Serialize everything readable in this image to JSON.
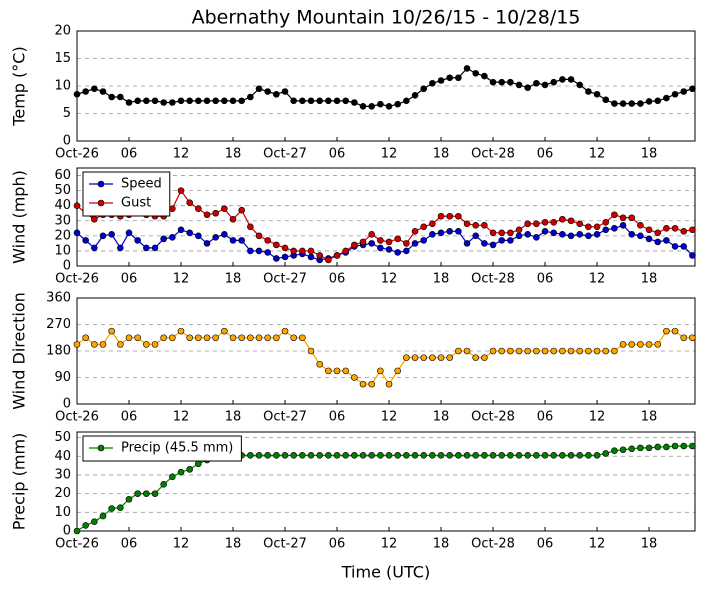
{
  "chart_data": [
    {
      "type": "line",
      "title": "Abernathy Mountain 10/26/15 - 10/28/15",
      "y_label": "Temp (°C)",
      "x": [
        0,
        1,
        2,
        3,
        4,
        5,
        6,
        7,
        8,
        9,
        10,
        11,
        12,
        13,
        14,
        15,
        16,
        17,
        18,
        19,
        20,
        21,
        22,
        23,
        24,
        25,
        26,
        27,
        28,
        29,
        30,
        31,
        32,
        33,
        34,
        35,
        36,
        37,
        38,
        39,
        40,
        41,
        42,
        43,
        44,
        45,
        46,
        47,
        48,
        49,
        50,
        51,
        52,
        53,
        54,
        55,
        56,
        57,
        58,
        59,
        60,
        61,
        62,
        63,
        64,
        65,
        66,
        67,
        68,
        69,
        70,
        71
      ],
      "xlim": [
        0,
        71.3
      ],
      "xticks": [
        {
          "value": 0,
          "label": "Oct-26"
        },
        {
          "value": 6,
          "label": "06"
        },
        {
          "value": 12,
          "label": "12"
        },
        {
          "value": 18,
          "label": "18"
        },
        {
          "value": 24,
          "label": "Oct-27"
        },
        {
          "value": 30,
          "label": "06"
        },
        {
          "value": 36,
          "label": "12"
        },
        {
          "value": 42,
          "label": "18"
        },
        {
          "value": 48,
          "label": "Oct-28"
        },
        {
          "value": 54,
          "label": "06"
        },
        {
          "value": 60,
          "label": "12"
        },
        {
          "value": 66,
          "label": "18"
        }
      ],
      "ylim": [
        0,
        20
      ],
      "yticks": [
        0,
        5,
        10,
        15,
        20
      ],
      "grid": true,
      "series": [
        {
          "color": "#000000",
          "values": [
            8.5,
            9,
            9.5,
            9,
            8,
            8,
            7,
            7.3,
            7.3,
            7.3,
            7,
            7,
            7.3,
            7.3,
            7.3,
            7.3,
            7.3,
            7.3,
            7.3,
            7.3,
            8,
            9.5,
            9,
            8.5,
            9,
            7.3,
            7.3,
            7.3,
            7.3,
            7.3,
            7.3,
            7.3,
            7,
            6.3,
            6.3,
            6.7,
            6.3,
            6.7,
            7.3,
            8.3,
            9.5,
            10.5,
            11,
            11.5,
            11.5,
            13.2,
            12.3,
            11.8,
            10.7,
            10.7,
            10.7,
            10.2,
            9.7,
            10.5,
            10.2,
            10.7,
            11.2,
            11.2,
            10.2,
            9,
            8.5,
            7.5,
            6.8,
            6.8,
            6.8,
            6.8,
            7.2,
            7.3,
            7.8,
            8.5,
            9,
            9.5
          ]
        }
      ]
    },
    {
      "type": "line",
      "y_label": "Wind (mph)",
      "x": [
        0,
        1,
        2,
        3,
        4,
        5,
        6,
        7,
        8,
        9,
        10,
        11,
        12,
        13,
        14,
        15,
        16,
        17,
        18,
        19,
        20,
        21,
        22,
        23,
        24,
        25,
        26,
        27,
        28,
        29,
        30,
        31,
        32,
        33,
        34,
        35,
        36,
        37,
        38,
        39,
        40,
        41,
        42,
        43,
        44,
        45,
        46,
        47,
        48,
        49,
        50,
        51,
        52,
        53,
        54,
        55,
        56,
        57,
        58,
        59,
        60,
        61,
        62,
        63,
        64,
        65,
        66,
        67,
        68,
        69,
        70,
        71
      ],
      "xlim": [
        0,
        71.3
      ],
      "xticks": [
        {
          "value": 0,
          "label": "Oct-26"
        },
        {
          "value": 6,
          "label": "06"
        },
        {
          "value": 12,
          "label": "12"
        },
        {
          "value": 18,
          "label": "18"
        },
        {
          "value": 24,
          "label": "Oct-27"
        },
        {
          "value": 30,
          "label": "06"
        },
        {
          "value": 36,
          "label": "12"
        },
        {
          "value": 42,
          "label": "18"
        },
        {
          "value": 48,
          "label": "Oct-28"
        },
        {
          "value": 54,
          "label": "06"
        },
        {
          "value": 60,
          "label": "12"
        },
        {
          "value": 66,
          "label": "18"
        }
      ],
      "ylim": [
        0,
        65
      ],
      "yticks": [
        0,
        10,
        20,
        30,
        40,
        50,
        60
      ],
      "grid": true,
      "legend": "upper left",
      "series": [
        {
          "name": "Speed",
          "color": "#0000cc",
          "values": [
            22,
            17,
            12,
            20,
            21,
            12,
            22,
            17,
            12,
            12,
            18,
            19,
            24,
            22,
            20,
            15,
            19,
            21,
            17,
            17,
            10,
            10,
            9,
            5,
            6,
            7,
            8,
            6,
            4,
            5,
            7,
            9,
            13,
            14,
            15,
            12,
            11,
            9,
            10,
            15,
            17,
            21,
            22,
            23,
            23,
            15,
            20,
            15,
            14,
            17,
            17,
            20,
            21,
            19,
            23,
            22,
            21,
            20,
            21,
            20,
            21,
            24,
            25,
            27,
            21,
            20,
            18,
            16,
            17,
            13,
            13,
            7
          ]
        },
        {
          "name": "Gust",
          "color": "#cc0000",
          "values": [
            40,
            35,
            31,
            34,
            34,
            33,
            34,
            35,
            34,
            33,
            33,
            38,
            50,
            42,
            38,
            34,
            35,
            38,
            31,
            37,
            26,
            20,
            17,
            14,
            12,
            10,
            10,
            10,
            7,
            4,
            7,
            10,
            14,
            16,
            21,
            17,
            16,
            18,
            15,
            23,
            26,
            28,
            33,
            33,
            33,
            28,
            27,
            27,
            22,
            22,
            22,
            24,
            28,
            28,
            29,
            29,
            31,
            30,
            28,
            26,
            26,
            29,
            34,
            32,
            32,
            27,
            24,
            22,
            25,
            25,
            23,
            24
          ]
        }
      ]
    },
    {
      "type": "line",
      "y_label": "Wind Direction",
      "x": [
        0,
        1,
        2,
        3,
        4,
        5,
        6,
        7,
        8,
        9,
        10,
        11,
        12,
        13,
        14,
        15,
        16,
        17,
        18,
        19,
        20,
        21,
        22,
        23,
        24,
        25,
        26,
        27,
        28,
        29,
        30,
        31,
        32,
        33,
        34,
        35,
        36,
        37,
        38,
        39,
        40,
        41,
        42,
        43,
        44,
        45,
        46,
        47,
        48,
        49,
        50,
        51,
        52,
        53,
        54,
        55,
        56,
        57,
        58,
        59,
        60,
        61,
        62,
        63,
        64,
        65,
        66,
        67,
        68,
        69,
        70,
        71
      ],
      "xlim": [
        0,
        71.3
      ],
      "xticks": [
        {
          "value": 0,
          "label": "Oct-26"
        },
        {
          "value": 6,
          "label": "06"
        },
        {
          "value": 12,
          "label": "12"
        },
        {
          "value": 18,
          "label": "18"
        },
        {
          "value": 24,
          "label": "Oct-27"
        },
        {
          "value": 30,
          "label": "06"
        },
        {
          "value": 36,
          "label": "12"
        },
        {
          "value": 42,
          "label": "18"
        },
        {
          "value": 48,
          "label": "Oct-28"
        },
        {
          "value": 54,
          "label": "06"
        },
        {
          "value": 60,
          "label": "12"
        },
        {
          "value": 66,
          "label": "18"
        }
      ],
      "ylim": [
        0,
        360
      ],
      "yticks": [
        0,
        90,
        180,
        270,
        360
      ],
      "grid": true,
      "series": [
        {
          "color": "#ffa500",
          "values": [
            202.5,
            225,
            202.5,
            202.5,
            247.5,
            202.5,
            225,
            225,
            202.5,
            202.5,
            225,
            225,
            247.5,
            225,
            225,
            225,
            225,
            247.5,
            225,
            225,
            225,
            225,
            225,
            225,
            247.5,
            225,
            225,
            180,
            135,
            112.5,
            112.5,
            112.5,
            90,
            67.5,
            67.5,
            112.5,
            67.5,
            112.5,
            157.5,
            157.5,
            157.5,
            157.5,
            157.5,
            157.5,
            180,
            180,
            157.5,
            157.5,
            180,
            180,
            180,
            180,
            180,
            180,
            180,
            180,
            180,
            180,
            180,
            180,
            180,
            180,
            180,
            202.5,
            202.5,
            202.5,
            202.5,
            202.5,
            247.5,
            247.5,
            225,
            225
          ]
        }
      ]
    },
    {
      "type": "line",
      "y_label": "Precip (mm)",
      "x_label": "Time (UTC)",
      "x": [
        0,
        1,
        2,
        3,
        4,
        5,
        6,
        7,
        8,
        9,
        10,
        11,
        12,
        13,
        14,
        15,
        16,
        17,
        18,
        19,
        20,
        21,
        22,
        23,
        24,
        25,
        26,
        27,
        28,
        29,
        30,
        31,
        32,
        33,
        34,
        35,
        36,
        37,
        38,
        39,
        40,
        41,
        42,
        43,
        44,
        45,
        46,
        47,
        48,
        49,
        50,
        51,
        52,
        53,
        54,
        55,
        56,
        57,
        58,
        59,
        60,
        61,
        62,
        63,
        64,
        65,
        66,
        67,
        68,
        69,
        70,
        71
      ],
      "xlim": [
        0,
        71.3
      ],
      "xticks": [
        {
          "value": 0,
          "label": "Oct-26"
        },
        {
          "value": 6,
          "label": "06"
        },
        {
          "value": 12,
          "label": "12"
        },
        {
          "value": 18,
          "label": "18"
        },
        {
          "value": 24,
          "label": "Oct-27"
        },
        {
          "value": 30,
          "label": "06"
        },
        {
          "value": 36,
          "label": "12"
        },
        {
          "value": 42,
          "label": "18"
        },
        {
          "value": 48,
          "label": "Oct-28"
        },
        {
          "value": 54,
          "label": "06"
        },
        {
          "value": 60,
          "label": "12"
        },
        {
          "value": 66,
          "label": "18"
        }
      ],
      "ylim": [
        0,
        53
      ],
      "yticks": [
        0,
        10,
        20,
        30,
        40,
        50
      ],
      "grid": true,
      "legend": "upper left",
      "series": [
        {
          "name": "Precip (45.5 mm)",
          "color": "#007f00",
          "values": [
            0,
            3,
            5,
            8,
            12,
            12.5,
            17,
            20,
            20,
            20,
            25,
            29,
            31.5,
            33,
            36,
            38,
            40,
            40.5,
            40.5,
            40.5,
            40.5,
            40.5,
            40.5,
            40.5,
            40.5,
            40.5,
            40.5,
            40.5,
            40.5,
            40.5,
            40.5,
            40.5,
            40.5,
            40.5,
            40.5,
            40.5,
            40.5,
            40.5,
            40.5,
            40.5,
            40.5,
            40.5,
            40.5,
            40.5,
            40.5,
            40.5,
            40.5,
            40.5,
            40.5,
            40.5,
            40.5,
            40.5,
            40.5,
            40.5,
            40.5,
            40.5,
            40.5,
            40.5,
            40.5,
            40.5,
            40.5,
            41.5,
            43,
            43.5,
            44,
            44.5,
            44.5,
            45,
            45,
            45.5,
            45.5,
            45.5
          ]
        }
      ]
    }
  ]
}
